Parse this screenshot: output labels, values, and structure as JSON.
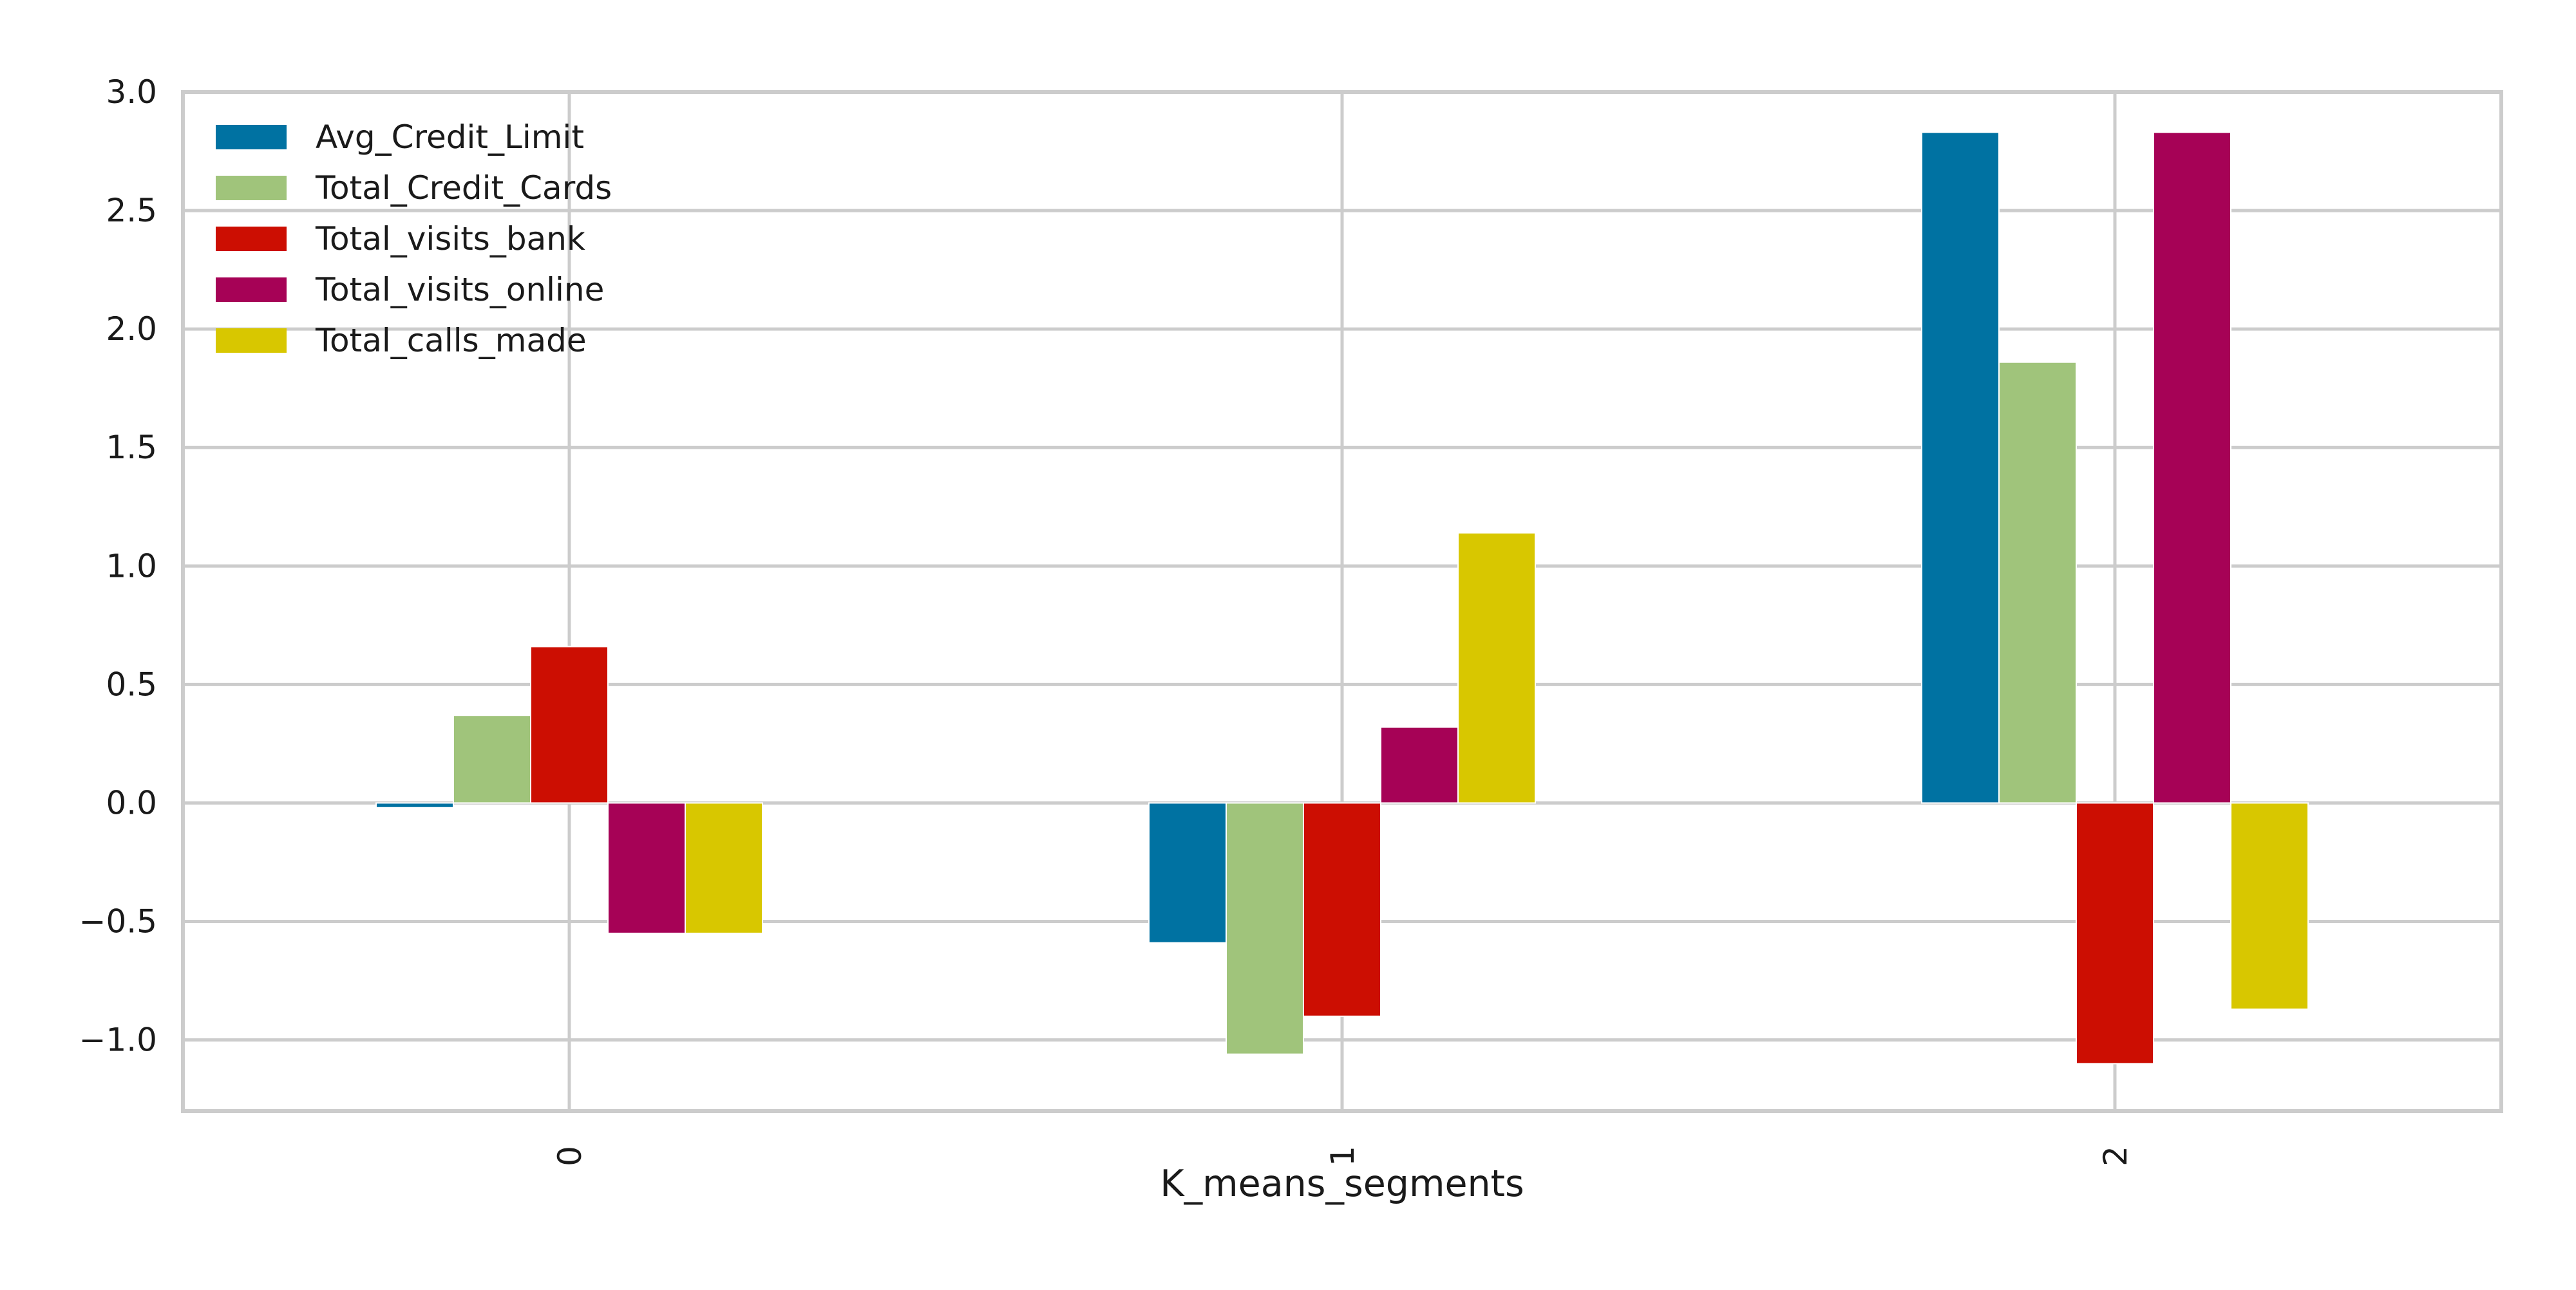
{
  "chart_data": {
    "type": "bar",
    "title": "",
    "xlabel": "K_means_segments",
    "ylabel": "",
    "categories": [
      "0",
      "1",
      "2"
    ],
    "ylim": [
      -1.3,
      3.0
    ],
    "yticks": [
      3.0,
      2.5,
      2.0,
      1.5,
      1.0,
      0.5,
      0.0,
      -0.5,
      -1.0
    ],
    "ytick_labels": [
      "3.0",
      "2.5",
      "2.0",
      "1.5",
      "1.0",
      "0.5",
      "0.0",
      "−0.5",
      "−1.0"
    ],
    "grid": true,
    "legend_position": "top-left",
    "series": [
      {
        "name": "Avg_Credit_Limit",
        "color": "#0072a2",
        "values": [
          -0.02,
          -0.59,
          2.83
        ]
      },
      {
        "name": "Total_Credit_Cards",
        "color": "#a0c47b",
        "values": [
          0.37,
          -1.06,
          1.86
        ]
      },
      {
        "name": "Total_visits_bank",
        "color": "#cc0e02",
        "values": [
          0.66,
          -0.9,
          -1.1
        ]
      },
      {
        "name": "Total_visits_online",
        "color": "#a60256",
        "values": [
          -0.55,
          0.32,
          2.83
        ]
      },
      {
        "name": "Total_calls_made",
        "color": "#d8c700",
        "values": [
          -0.55,
          1.14,
          -0.87
        ]
      }
    ]
  }
}
